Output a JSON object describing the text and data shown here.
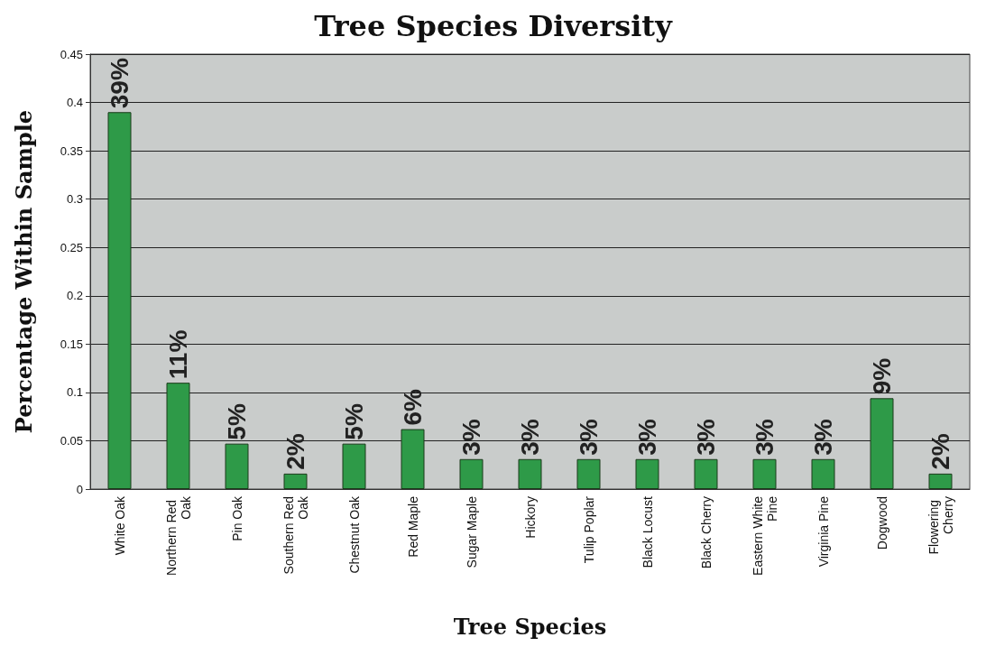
{
  "chart_data": {
    "type": "bar",
    "title": "Tree Species Diversity",
    "xlabel": "Tree Species",
    "ylabel": "Percentage Within Sample",
    "categories": [
      "White Oak",
      "Northern Red Oak",
      "Pin Oak",
      "Southern Red Oak",
      "Chestnut Oak",
      "Red Maple",
      "Sugar Maple",
      "Hickory",
      "Tulip Poplar",
      "Black Locust",
      "Black Cherry",
      "Eastern White Pine",
      "Virginia Pine",
      "Dogwood",
      "Flowering Cherry"
    ],
    "values": [
      0.39,
      0.11,
      0.047,
      0.016,
      0.047,
      0.062,
      0.031,
      0.031,
      0.031,
      0.031,
      0.031,
      0.031,
      0.031,
      0.094,
      0.016
    ],
    "value_labels": [
      "39%",
      "11%",
      "5%",
      "2%",
      "5%",
      "6%",
      "3%",
      "3%",
      "3%",
      "3%",
      "3%",
      "3%",
      "3%",
      "9%",
      "2%"
    ],
    "color": "#2e9a48",
    "ylim": [
      0,
      0.45
    ],
    "yticks": [
      0,
      0.05,
      0.1,
      0.15,
      0.2,
      0.25,
      0.3,
      0.35,
      0.4,
      0.45
    ],
    "grid": "y"
  }
}
